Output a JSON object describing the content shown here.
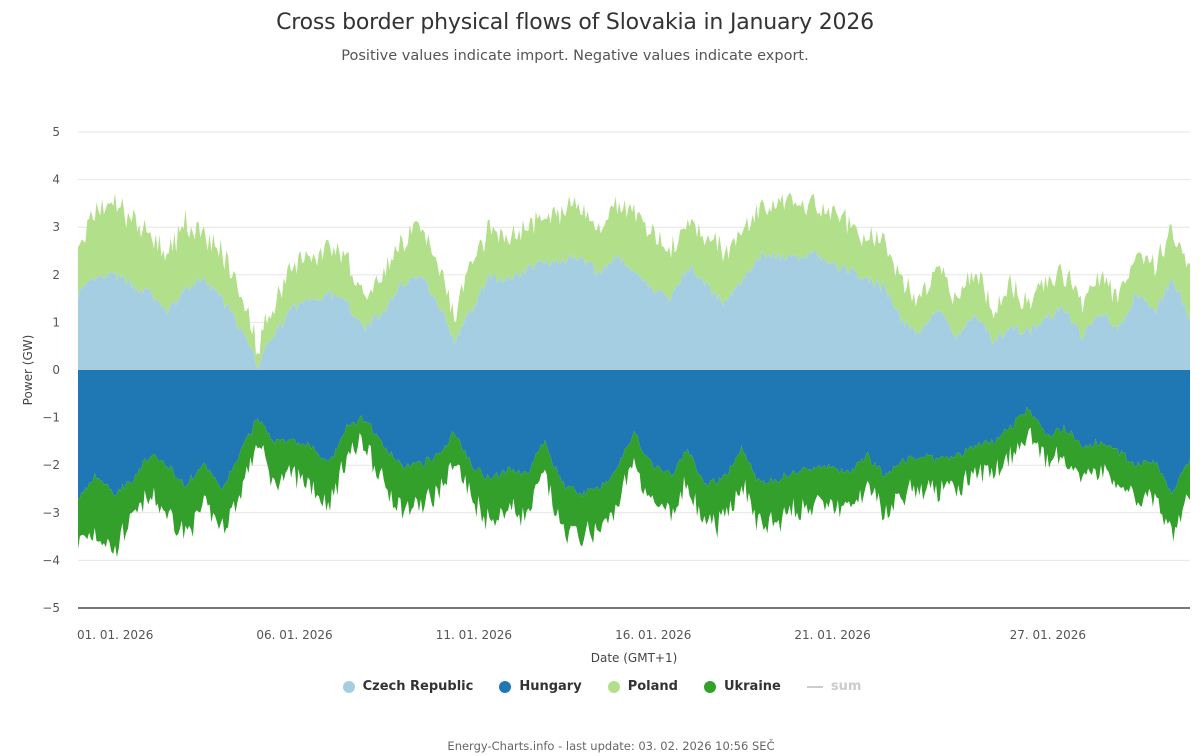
{
  "chart_data": {
    "type": "area",
    "stacked": true,
    "title": "Cross border physical flows of Slovakia in January 2026",
    "subtitle": "Positive values indicate import. Negative values indicate export.",
    "xlabel": "Date (GMT+1)",
    "ylabel": "Power (GW)",
    "ylim": [
      -5,
      5
    ],
    "yticks": [
      5,
      4,
      3,
      2,
      1,
      0,
      -1,
      -2,
      -3,
      -4,
      -5
    ],
    "ytick_labels": [
      "5",
      "4",
      "3",
      "2",
      "1",
      "0",
      "−1",
      "−2",
      "−3",
      "−4",
      "−5"
    ],
    "xlim_days": [
      1,
      32
    ],
    "xticks": [
      {
        "day": 1,
        "label": "01. 01. 2026"
      },
      {
        "day": 6,
        "label": "06. 01. 2026"
      },
      {
        "day": 11,
        "label": "11. 01. 2026"
      },
      {
        "day": 16,
        "label": "16. 01. 2026"
      },
      {
        "day": 21,
        "label": "21. 01. 2026"
      },
      {
        "day": 27,
        "label": "27. 01. 2026"
      }
    ],
    "grid": true,
    "x_days": [
      1.0,
      1.5,
      2.0,
      2.5,
      3.0,
      3.5,
      4.0,
      4.5,
      5.0,
      5.5,
      6.0,
      6.5,
      7.0,
      7.5,
      8.0,
      8.5,
      9.0,
      9.5,
      10.0,
      10.5,
      11.0,
      11.5,
      12.0,
      12.5,
      13.0,
      13.5,
      14.0,
      14.5,
      15.0,
      15.5,
      16.0,
      16.5,
      17.0,
      17.5,
      18.0,
      18.5,
      19.0,
      19.5,
      20.0,
      20.5,
      21.0,
      21.5,
      22.0,
      22.5,
      23.0,
      23.5,
      24.0,
      24.5,
      25.0,
      25.5,
      26.0,
      26.5,
      27.0,
      27.5,
      28.0,
      28.5,
      29.0,
      29.5,
      30.0,
      30.5,
      31.0,
      31.5,
      32.0
    ],
    "series": [
      {
        "name": "Czech Republic",
        "color": "#a6cee3",
        "values": [
          1.6,
          1.9,
          2.0,
          1.8,
          1.6,
          1.2,
          1.7,
          1.9,
          1.5,
          0.9,
          0.1,
          0.8,
          1.3,
          1.5,
          1.6,
          1.4,
          0.9,
          1.2,
          1.8,
          2.0,
          1.5,
          0.6,
          1.3,
          2.0,
          1.9,
          2.1,
          2.3,
          2.3,
          2.4,
          2.0,
          2.4,
          2.0,
          1.7,
          1.5,
          2.2,
          1.8,
          1.4,
          1.9,
          2.4,
          2.4,
          2.3,
          2.5,
          2.2,
          2.1,
          1.9,
          1.7,
          1.0,
          0.8,
          1.3,
          0.7,
          1.2,
          0.6,
          0.9,
          0.8,
          1.1,
          1.3,
          0.7,
          1.2,
          0.9,
          1.6,
          1.2,
          1.9,
          1.1
        ]
      },
      {
        "name": "Hungary",
        "color": "#1f78b4",
        "values": [
          -2.7,
          -2.2,
          -2.6,
          -2.3,
          -1.8,
          -2.0,
          -2.4,
          -2.0,
          -2.5,
          -1.8,
          -1.0,
          -1.5,
          -1.5,
          -1.6,
          -2.0,
          -1.2,
          -1.0,
          -1.6,
          -2.0,
          -2.0,
          -1.8,
          -1.3,
          -2.0,
          -2.3,
          -2.1,
          -2.2,
          -1.5,
          -2.4,
          -2.6,
          -2.5,
          -2.1,
          -1.3,
          -2.0,
          -2.2,
          -1.7,
          -2.4,
          -2.3,
          -1.6,
          -2.4,
          -2.3,
          -2.1,
          -2.1,
          -2.0,
          -2.2,
          -1.8,
          -2.2,
          -1.9,
          -1.8,
          -1.9,
          -1.8,
          -1.6,
          -1.5,
          -1.2,
          -0.8,
          -1.4,
          -1.2,
          -1.6,
          -1.5,
          -1.7,
          -2.0,
          -1.9,
          -2.6,
          -1.9
        ]
      },
      {
        "name": "Poland",
        "color": "#b2df8a",
        "values": [
          0.9,
          1.4,
          1.5,
          1.4,
          1.2,
          1.2,
          1.4,
          0.9,
          1.0,
          0.8,
          0.4,
          0.7,
          0.9,
          0.9,
          1.0,
          0.9,
          0.6,
          0.8,
          0.9,
          1.0,
          0.9,
          0.6,
          1.0,
          1.0,
          0.9,
          0.9,
          1.0,
          1.0,
          1.1,
          0.9,
          1.1,
          1.2,
          1.2,
          1.0,
          0.9,
          1.0,
          1.1,
          1.0,
          1.0,
          1.2,
          1.1,
          1.0,
          1.0,
          1.0,
          0.9,
          0.9,
          0.8,
          0.7,
          0.9,
          0.8,
          0.9,
          0.7,
          0.9,
          0.6,
          0.8,
          0.7,
          0.8,
          0.8,
          0.7,
          0.8,
          0.9,
          1.0,
          1.0
        ]
      },
      {
        "name": "Ukraine",
        "color": "#33a02c",
        "values": [
          -0.9,
          -1.2,
          -1.2,
          -0.8,
          -0.9,
          -1.0,
          -1.0,
          -0.9,
          -0.8,
          -0.9,
          -0.5,
          -0.9,
          -0.7,
          -0.8,
          -0.9,
          -0.6,
          -0.5,
          -0.8,
          -0.9,
          -0.9,
          -0.8,
          -0.6,
          -0.7,
          -0.9,
          -0.8,
          -0.9,
          -0.7,
          -1.0,
          -0.9,
          -0.9,
          -0.8,
          -0.6,
          -0.8,
          -0.9,
          -0.7,
          -0.9,
          -0.9,
          -0.7,
          -0.9,
          -0.9,
          -0.8,
          -0.8,
          -0.8,
          -0.8,
          -0.7,
          -0.8,
          -0.7,
          -0.7,
          -0.7,
          -0.7,
          -0.6,
          -0.6,
          -0.6,
          -0.5,
          -0.6,
          -0.6,
          -0.6,
          -0.6,
          -0.7,
          -0.7,
          -0.8,
          -0.9,
          -0.8
        ]
      },
      {
        "name": "sum",
        "color": "#cccccc",
        "visible": false,
        "values": []
      }
    ],
    "legend_position": "bottom-center"
  },
  "legend": {
    "items": [
      {
        "label": "Czech Republic",
        "color": "#a6cee3",
        "shape": "dot",
        "visible": true
      },
      {
        "label": "Hungary",
        "color": "#1f78b4",
        "shape": "dot",
        "visible": true
      },
      {
        "label": "Poland",
        "color": "#b2df8a",
        "shape": "dot",
        "visible": true
      },
      {
        "label": "Ukraine",
        "color": "#33a02c",
        "shape": "dot",
        "visible": true
      },
      {
        "label": "sum",
        "color": "#cccccc",
        "shape": "line",
        "visible": false
      }
    ]
  },
  "footer": {
    "text": "Energy-Charts.info - last update: 03. 02. 2026 10:56 SEČ"
  }
}
